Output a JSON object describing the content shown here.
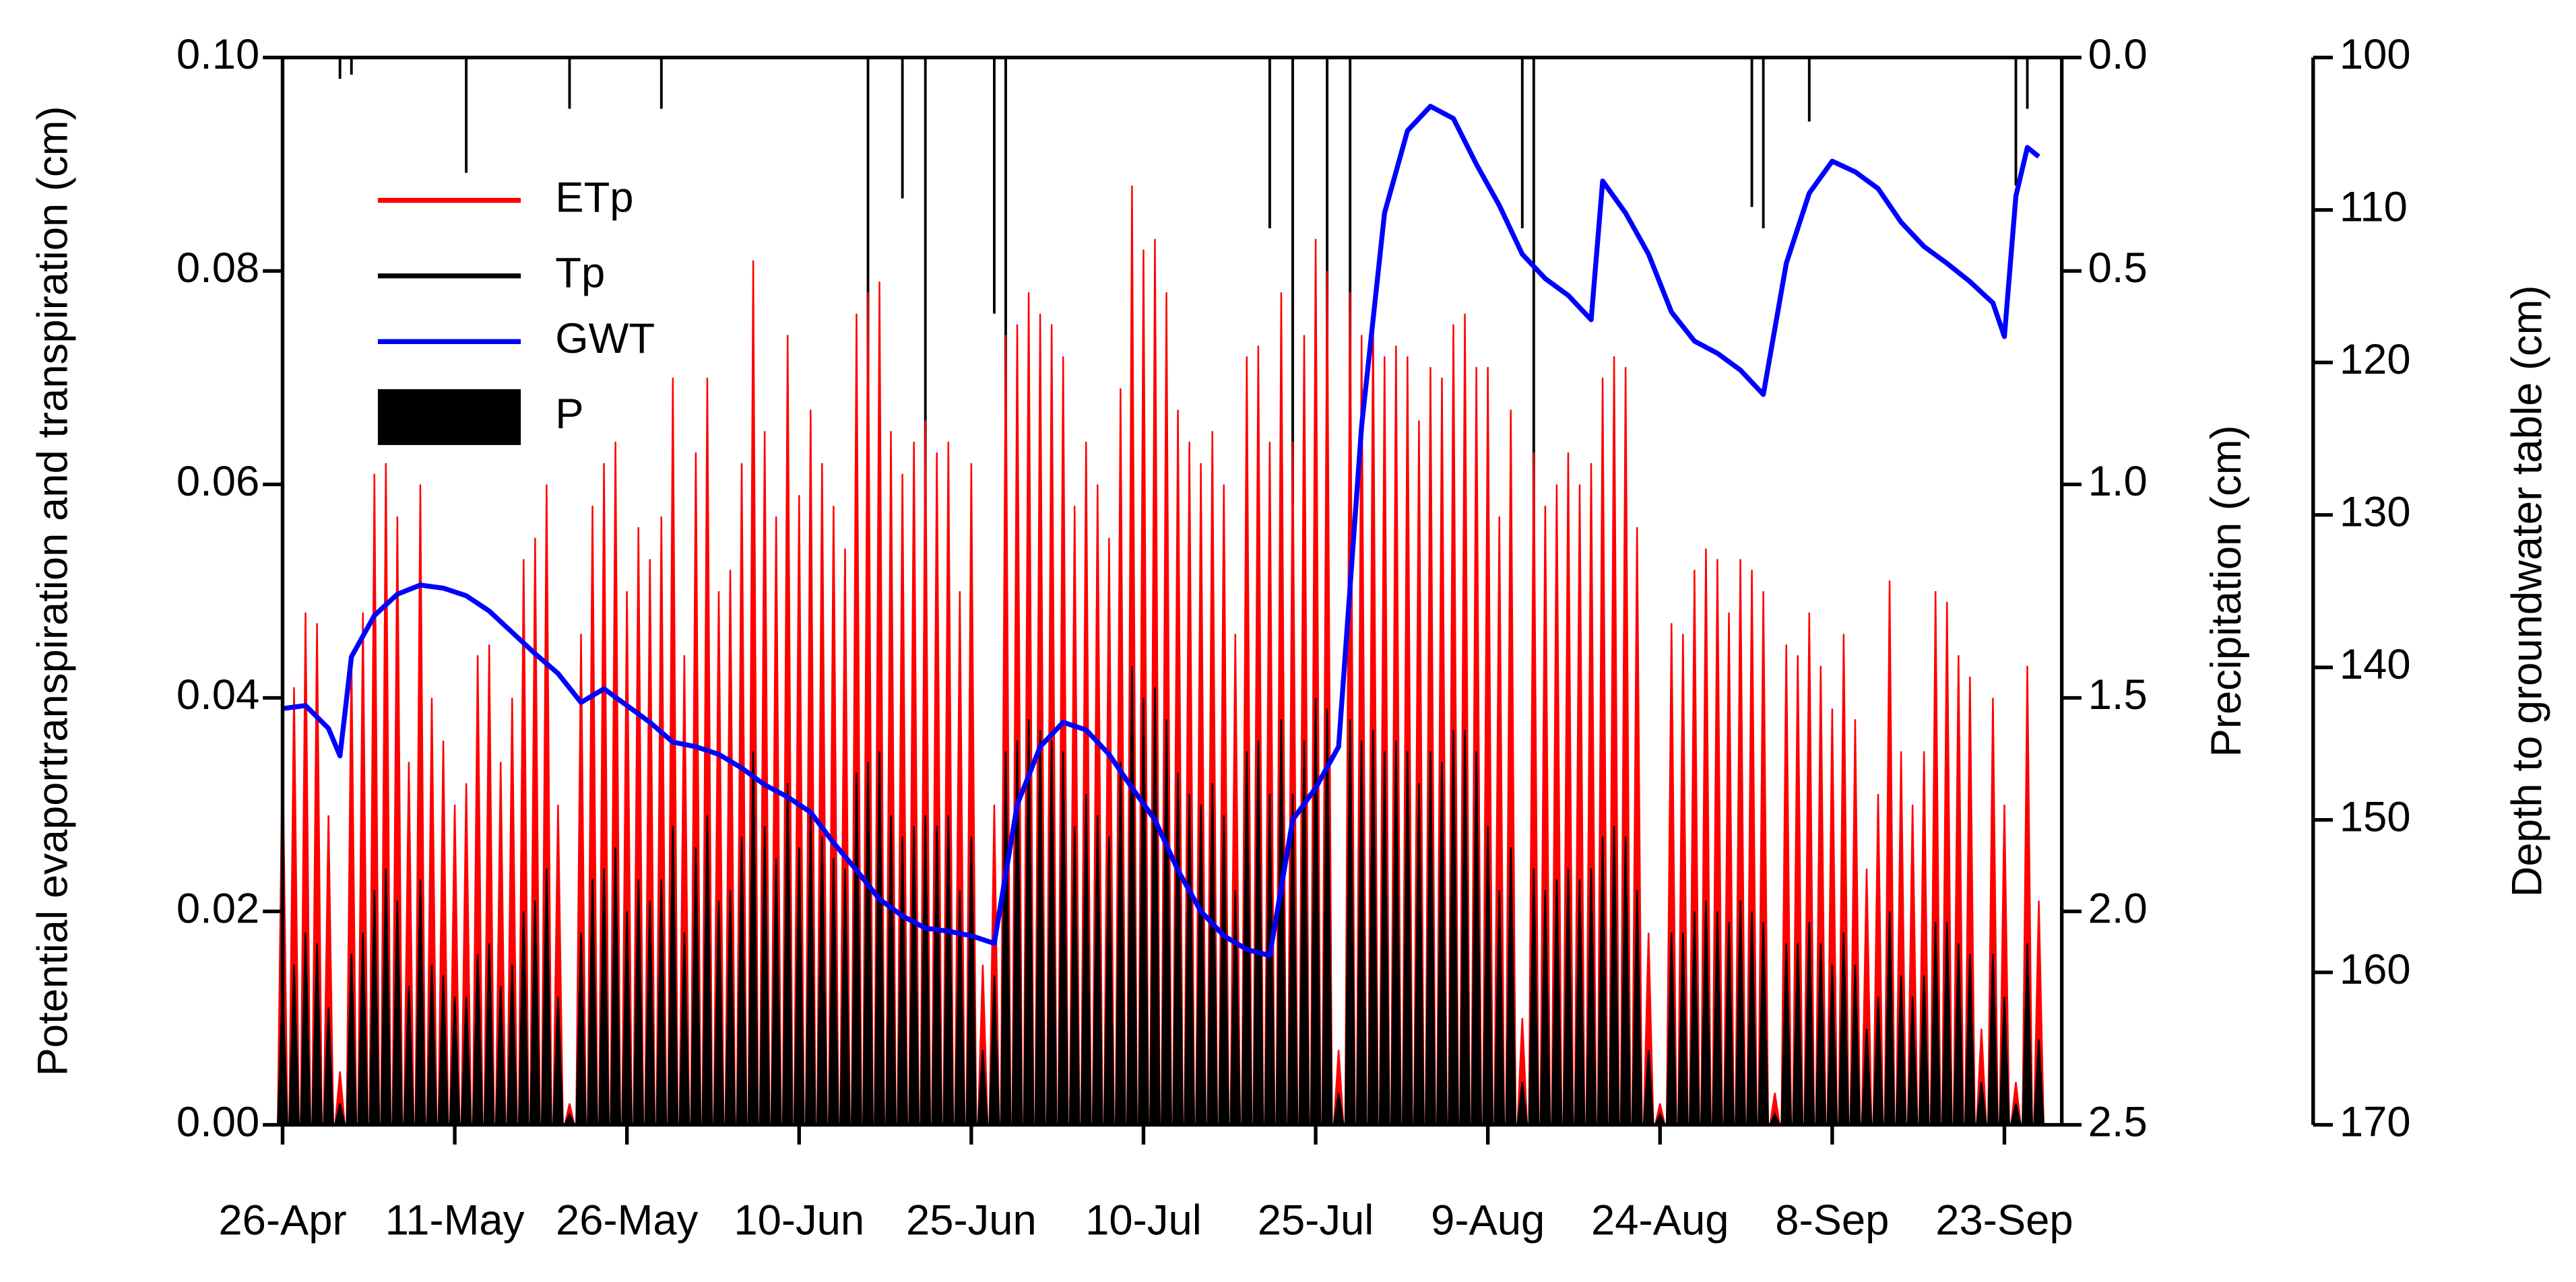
{
  "chart_data": {
    "type": "line",
    "y_label": "Potential evaportranspiration and transpiration (cm)",
    "y2_label": "Precipitation (cm)",
    "y3_label": "Depth to groundwater table (cm)",
    "xlim": [
      0,
      155
    ],
    "xticks": [
      {
        "value": 0,
        "label": "26-Apr"
      },
      {
        "value": 15,
        "label": "11-May"
      },
      {
        "value": 30,
        "label": "26-May"
      },
      {
        "value": 45,
        "label": "10-Jun"
      },
      {
        "value": 60,
        "label": "25-Jun"
      },
      {
        "value": 75,
        "label": "10-Jul"
      },
      {
        "value": 90,
        "label": "25-Jul"
      },
      {
        "value": 105,
        "label": "9-Aug"
      },
      {
        "value": 120,
        "label": "24-Aug"
      },
      {
        "value": 135,
        "label": "8-Sep"
      },
      {
        "value": 150,
        "label": "23-Sep"
      }
    ],
    "ylim": [
      0,
      0.1
    ],
    "yticks": [
      {
        "value": 0,
        "label": "0.00"
      },
      {
        "value": 0.02,
        "label": "0.02"
      },
      {
        "value": 0.04,
        "label": "0.04"
      },
      {
        "value": 0.06,
        "label": "0.06"
      },
      {
        "value": 0.08,
        "label": "0.08"
      },
      {
        "value": 0.1,
        "label": "0.10"
      }
    ],
    "y2lim": [
      2.5,
      0
    ],
    "y2ticks": [
      {
        "value": 0,
        "label": "0.0"
      },
      {
        "value": 0.5,
        "label": "0.5"
      },
      {
        "value": 1,
        "label": "1.0"
      },
      {
        "value": 1.5,
        "label": "1.5"
      },
      {
        "value": 2,
        "label": "2.0"
      },
      {
        "value": 2.5,
        "label": "2.5"
      }
    ],
    "y3lim": [
      170,
      100
    ],
    "y3ticks": [
      100,
      110,
      120,
      130,
      140,
      150,
      160,
      170
    ],
    "series": [
      {
        "name": "ETp",
        "color": "#ff0000",
        "mark": "spike",
        "axis": "y",
        "x": [
          0,
          1,
          2,
          3,
          4,
          5,
          6,
          7,
          8,
          9,
          10,
          11,
          12,
          13,
          14,
          15,
          16,
          17,
          18,
          19,
          20,
          21,
          22,
          23,
          24,
          25,
          26,
          27,
          28,
          29,
          30,
          31,
          32,
          33,
          34,
          35,
          36,
          37,
          38,
          39,
          40,
          41,
          42,
          43,
          44,
          45,
          46,
          47,
          48,
          49,
          50,
          51,
          52,
          53,
          54,
          55,
          56,
          57,
          58,
          59,
          60,
          61,
          62,
          63,
          64,
          65,
          66,
          67,
          68,
          69,
          70,
          71,
          72,
          73,
          74,
          75,
          76,
          77,
          78,
          79,
          80,
          81,
          82,
          83,
          84,
          85,
          86,
          87,
          88,
          89,
          90,
          91,
          92,
          93,
          94,
          95,
          96,
          97,
          98,
          99,
          100,
          101,
          102,
          103,
          104,
          105,
          106,
          107,
          108,
          109,
          110,
          111,
          112,
          113,
          114,
          115,
          116,
          117,
          118,
          119,
          120,
          121,
          122,
          123,
          124,
          125,
          126,
          127,
          128,
          129,
          130,
          131,
          132,
          133,
          134,
          135,
          136,
          137,
          138,
          139,
          140,
          141,
          142,
          143,
          144,
          145,
          146,
          147,
          148,
          149,
          150,
          151,
          152,
          153
        ],
        "values": [
          0.036,
          0.041,
          0.048,
          0.047,
          0.029,
          0.005,
          0.044,
          0.048,
          0.061,
          0.062,
          0.057,
          0.034,
          0.06,
          0.04,
          0.036,
          0.03,
          0.032,
          0.044,
          0.045,
          0.034,
          0.04,
          0.053,
          0.055,
          0.06,
          0.03,
          0.002,
          0.046,
          0.058,
          0.062,
          0.064,
          0.05,
          0.056,
          0.053,
          0.057,
          0.07,
          0.044,
          0.063,
          0.07,
          0.05,
          0.052,
          0.062,
          0.081,
          0.065,
          0.057,
          0.074,
          0.059,
          0.067,
          0.062,
          0.058,
          0.054,
          0.076,
          0.078,
          0.079,
          0.065,
          0.061,
          0.064,
          0.066,
          0.063,
          0.064,
          0.05,
          0.062,
          0.015,
          0.03,
          0.074,
          0.075,
          0.078,
          0.076,
          0.075,
          0.072,
          0.058,
          0.064,
          0.06,
          0.055,
          0.069,
          0.088,
          0.082,
          0.083,
          0.078,
          0.067,
          0.064,
          0.062,
          0.065,
          0.06,
          0.046,
          0.072,
          0.073,
          0.064,
          0.078,
          0.064,
          0.074,
          0.083,
          0.08,
          0.007,
          0.078,
          0.074,
          0.076,
          0.072,
          0.073,
          0.072,
          0.066,
          0.071,
          0.07,
          0.075,
          0.076,
          0.071,
          0.071,
          0.057,
          0.067,
          0.01,
          0.063,
          0.058,
          0.06,
          0.063,
          0.06,
          0.062,
          0.07,
          0.072,
          0.071,
          0.056,
          0.018,
          0.002,
          0.047,
          0.046,
          0.052,
          0.054,
          0.053,
          0.048,
          0.053,
          0.052,
          0.05,
          0.003,
          0.045,
          0.044,
          0.048,
          0.043,
          0.039,
          0.046,
          0.038,
          0.024,
          0.031,
          0.051,
          0.035,
          0.03,
          0.035,
          0.05,
          0.049,
          0.044,
          0.042,
          0.009,
          0.04,
          0.03,
          0.004,
          0.043,
          0.021
        ]
      },
      {
        "name": "Tp",
        "color": "#000000",
        "mark": "spike",
        "axis": "y",
        "x": [
          0,
          1,
          2,
          3,
          4,
          5,
          6,
          7,
          8,
          9,
          10,
          11,
          12,
          13,
          14,
          15,
          16,
          17,
          18,
          19,
          20,
          21,
          22,
          23,
          24,
          25,
          26,
          27,
          28,
          29,
          30,
          31,
          32,
          33,
          34,
          35,
          36,
          37,
          38,
          39,
          40,
          41,
          42,
          43,
          44,
          45,
          46,
          47,
          48,
          49,
          50,
          51,
          52,
          53,
          54,
          55,
          56,
          57,
          58,
          59,
          60,
          61,
          62,
          63,
          64,
          65,
          66,
          67,
          68,
          69,
          70,
          71,
          72,
          73,
          74,
          75,
          76,
          77,
          78,
          79,
          80,
          81,
          82,
          83,
          84,
          85,
          86,
          87,
          88,
          89,
          90,
          91,
          92,
          93,
          94,
          95,
          96,
          97,
          98,
          99,
          100,
          101,
          102,
          103,
          104,
          105,
          106,
          107,
          108,
          109,
          110,
          111,
          112,
          113,
          114,
          115,
          116,
          117,
          118,
          119,
          120,
          121,
          122,
          123,
          124,
          125,
          126,
          127,
          128,
          129,
          130,
          131,
          132,
          133,
          134,
          135,
          136,
          137,
          138,
          139,
          140,
          141,
          142,
          143,
          144,
          145,
          146,
          147,
          148,
          149,
          150,
          151,
          152,
          153
        ],
        "values": [
          0.013,
          0.015,
          0.018,
          0.017,
          0.011,
          0.002,
          0.016,
          0.018,
          0.022,
          0.024,
          0.021,
          0.013,
          0.023,
          0.015,
          0.014,
          0.012,
          0.012,
          0.016,
          0.017,
          0.013,
          0.015,
          0.02,
          0.021,
          0.024,
          0.012,
          0.001,
          0.018,
          0.023,
          0.024,
          0.026,
          0.02,
          0.023,
          0.021,
          0.023,
          0.028,
          0.018,
          0.026,
          0.029,
          0.021,
          0.022,
          0.027,
          0.035,
          0.028,
          0.025,
          0.032,
          0.026,
          0.029,
          0.027,
          0.025,
          0.024,
          0.033,
          0.034,
          0.035,
          0.029,
          0.027,
          0.028,
          0.029,
          0.028,
          0.029,
          0.022,
          0.027,
          0.007,
          0.014,
          0.035,
          0.036,
          0.038,
          0.037,
          0.036,
          0.035,
          0.028,
          0.031,
          0.029,
          0.027,
          0.034,
          0.043,
          0.04,
          0.041,
          0.038,
          0.033,
          0.031,
          0.03,
          0.032,
          0.029,
          0.022,
          0.035,
          0.036,
          0.031,
          0.038,
          0.031,
          0.036,
          0.04,
          0.039,
          0.003,
          0.038,
          0.036,
          0.037,
          0.035,
          0.036,
          0.035,
          0.032,
          0.035,
          0.034,
          0.037,
          0.037,
          0.035,
          0.028,
          0.022,
          0.026,
          0.004,
          0.024,
          0.022,
          0.023,
          0.024,
          0.023,
          0.024,
          0.027,
          0.028,
          0.027,
          0.022,
          0.007,
          0.001,
          0.018,
          0.018,
          0.02,
          0.021,
          0.02,
          0.019,
          0.021,
          0.02,
          0.019,
          0.001,
          0.017,
          0.017,
          0.019,
          0.017,
          0.015,
          0.018,
          0.015,
          0.009,
          0.012,
          0.02,
          0.014,
          0.012,
          0.014,
          0.019,
          0.019,
          0.017,
          0.016,
          0.004,
          0.016,
          0.012,
          0.002,
          0.017,
          0.008
        ]
      },
      {
        "name": "GWT",
        "color": "#0000ff",
        "mark": "line",
        "axis": "y3",
        "x": [
          0,
          2,
          4,
          5,
          6,
          8,
          10,
          12,
          14,
          16,
          18,
          20,
          22,
          24,
          26,
          28,
          30,
          32,
          34,
          36,
          38,
          40,
          42,
          44,
          46,
          48,
          50,
          52,
          54,
          56,
          58,
          60,
          62,
          64,
          66,
          68,
          70,
          72,
          74,
          76,
          78,
          80,
          82,
          84,
          86,
          88,
          90,
          92,
          94,
          96,
          98,
          100,
          102,
          104,
          106,
          108,
          110,
          112,
          114,
          115,
          117,
          119,
          121,
          123,
          125,
          127,
          129,
          131,
          133,
          135,
          137,
          139,
          141,
          143,
          145,
          147,
          149,
          150,
          151,
          152,
          153
        ],
        "values": [
          142.7,
          142.5,
          144,
          145.8,
          139.3,
          136.6,
          135.2,
          134.6,
          134.8,
          135.3,
          136.3,
          137.7,
          139.1,
          140.4,
          142.3,
          141.4,
          142.5,
          143.6,
          144.9,
          145.2,
          145.7,
          146.6,
          147.7,
          148.5,
          149.5,
          151.5,
          153.3,
          155.2,
          156.3,
          157.1,
          157.3,
          157.6,
          158.1,
          149,
          145.2,
          143.6,
          144.1,
          145.7,
          147.9,
          150,
          153.3,
          156,
          157.6,
          158.5,
          158.9,
          150,
          147.9,
          145.2,
          124.2,
          110.2,
          104.8,
          103.2,
          104,
          107,
          109.7,
          112.9,
          114.5,
          115.6,
          117.2,
          108.1,
          110.2,
          112.9,
          116.7,
          118.6,
          119.4,
          120.5,
          122.1,
          113.5,
          108.9,
          106.8,
          107.5,
          108.6,
          110.8,
          112.4,
          113.5,
          114.7,
          116.1,
          118.3,
          109.1,
          105.9,
          106.5
        ]
      },
      {
        "name": "P",
        "color": "#000000",
        "mark": "bar",
        "axis": "y2",
        "x": [
          5,
          6,
          16,
          25,
          33,
          51,
          54,
          56,
          62,
          63,
          86,
          88,
          91,
          93,
          108,
          109,
          128,
          129,
          133,
          151,
          152
        ],
        "values": [
          0.05,
          0.04,
          0.27,
          0.12,
          0.12,
          1.0,
          0.33,
          1.05,
          0.6,
          1.1,
          0.4,
          1.05,
          1.2,
          0.8,
          0.4,
          1.1,
          0.35,
          0.4,
          0.15,
          0.3,
          0.12
        ]
      }
    ]
  }
}
